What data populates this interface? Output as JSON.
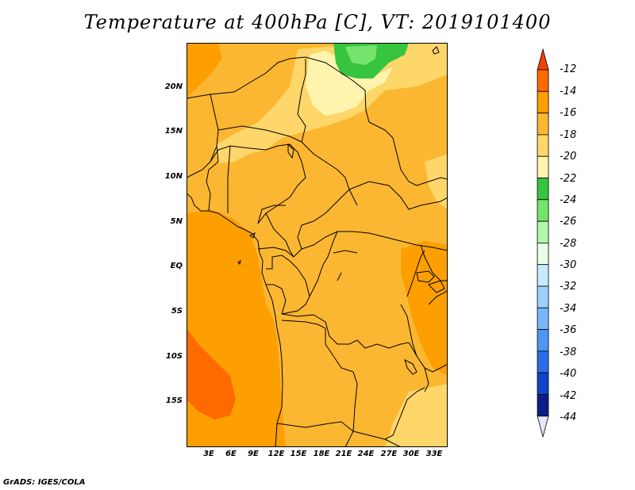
{
  "title": "Temperature at 400hPa [C], VT: 2019101400",
  "credit": "GrADS: IGES/COLA",
  "map": {
    "lat_labels": [
      "20N",
      "15N",
      "10N",
      "5N",
      "EQ",
      "5S",
      "10S",
      "15S"
    ],
    "lon_labels": [
      "3E",
      "6E",
      "9E",
      "12E",
      "15E",
      "18E",
      "21E",
      "24E",
      "27E",
      "30E",
      "33E"
    ]
  },
  "colorbar": {
    "labels": [
      "-12",
      "-14",
      "-16",
      "-18",
      "-20",
      "-22",
      "-24",
      "-26",
      "-28",
      "-30",
      "-32",
      "-34",
      "-36",
      "-38",
      "-40",
      "-42",
      "-44"
    ],
    "colors": [
      "#ee4400",
      "#fe6a00",
      "#fd9f00",
      "#fbb732",
      "#fed669",
      "#fff4ad",
      "#37c43e",
      "#75e46d",
      "#b2f8ab",
      "#e6ffe6",
      "#c8eaff",
      "#9ed0fe",
      "#78b6fa",
      "#4e96f2",
      "#2a6de6",
      "#1044c8",
      "#0b1e86",
      "#0a0a5a"
    ],
    "top_color": "#ee4400",
    "bottom_color": "#e6e6fa"
  }
}
